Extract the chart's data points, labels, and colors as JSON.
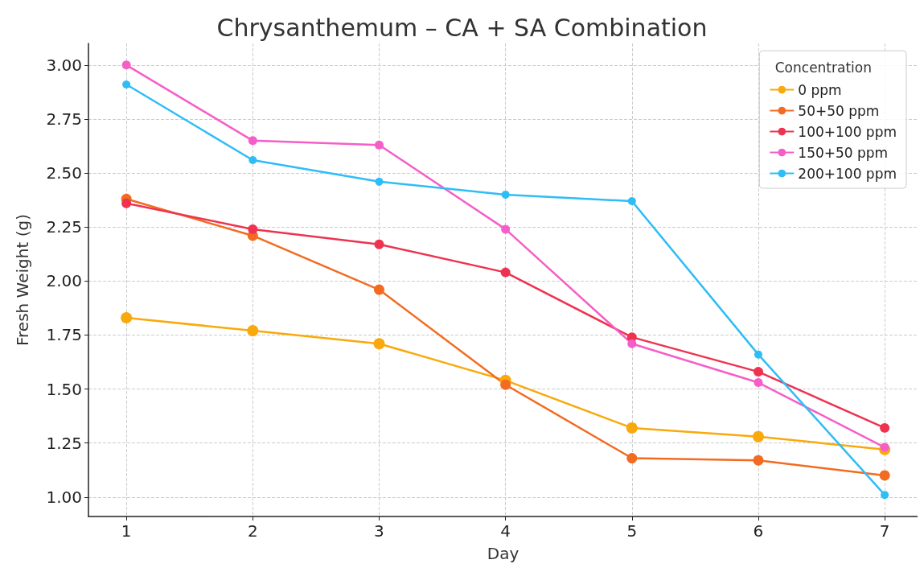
{
  "chart_data": {
    "type": "line",
    "title": "Chrysanthemum – CA + SA Combination",
    "xlabel": "Day",
    "ylabel": "Fresh Weight (g)",
    "legend_title": "Concentration",
    "x": [
      1,
      2,
      3,
      4,
      5,
      6,
      7
    ],
    "series": [
      {
        "name": "0 ppm",
        "color": "#f9a90c",
        "values": [
          1.83,
          1.77,
          1.71,
          1.54,
          1.32,
          1.28,
          1.22
        ]
      },
      {
        "name": "50+50 ppm",
        "color": "#f26b21",
        "values": [
          2.38,
          2.21,
          1.96,
          1.52,
          1.18,
          1.17,
          1.1
        ]
      },
      {
        "name": "100+100 ppm",
        "color": "#ee3350",
        "values": [
          2.36,
          2.24,
          2.17,
          2.04,
          1.74,
          1.58,
          1.32
        ]
      },
      {
        "name": "150+50 ppm",
        "color": "#f55ec8",
        "values": [
          3.0,
          2.65,
          2.63,
          2.24,
          1.71,
          1.53,
          1.23
        ]
      },
      {
        "name": "200+100 ppm",
        "color": "#2ebdf6",
        "values": [
          2.91,
          2.56,
          2.46,
          2.4,
          2.37,
          1.66,
          1.01
        ]
      }
    ],
    "xlim": [
      0.7,
      7.26
    ],
    "xticks": [
      1,
      2,
      3,
      4,
      5,
      6,
      7
    ],
    "ylim": [
      0.91,
      3.1
    ],
    "yticks": [
      {
        "value": 1,
        "label": "1.00"
      },
      {
        "value": 1.25,
        "label": "1.25"
      },
      {
        "value": 1.5,
        "label": "1.50"
      },
      {
        "value": 1.75,
        "label": "1.75"
      },
      {
        "value": 2,
        "label": "2.00"
      },
      {
        "value": 2.25,
        "label": "2.25"
      },
      {
        "value": 2.5,
        "label": "2.50"
      },
      {
        "value": 2.75,
        "label": "2.75"
      },
      {
        "value": 3,
        "label": "3.00"
      }
    ],
    "grid": true,
    "legend": "top right",
    "marker": "circle",
    "line_style": "solid"
  }
}
